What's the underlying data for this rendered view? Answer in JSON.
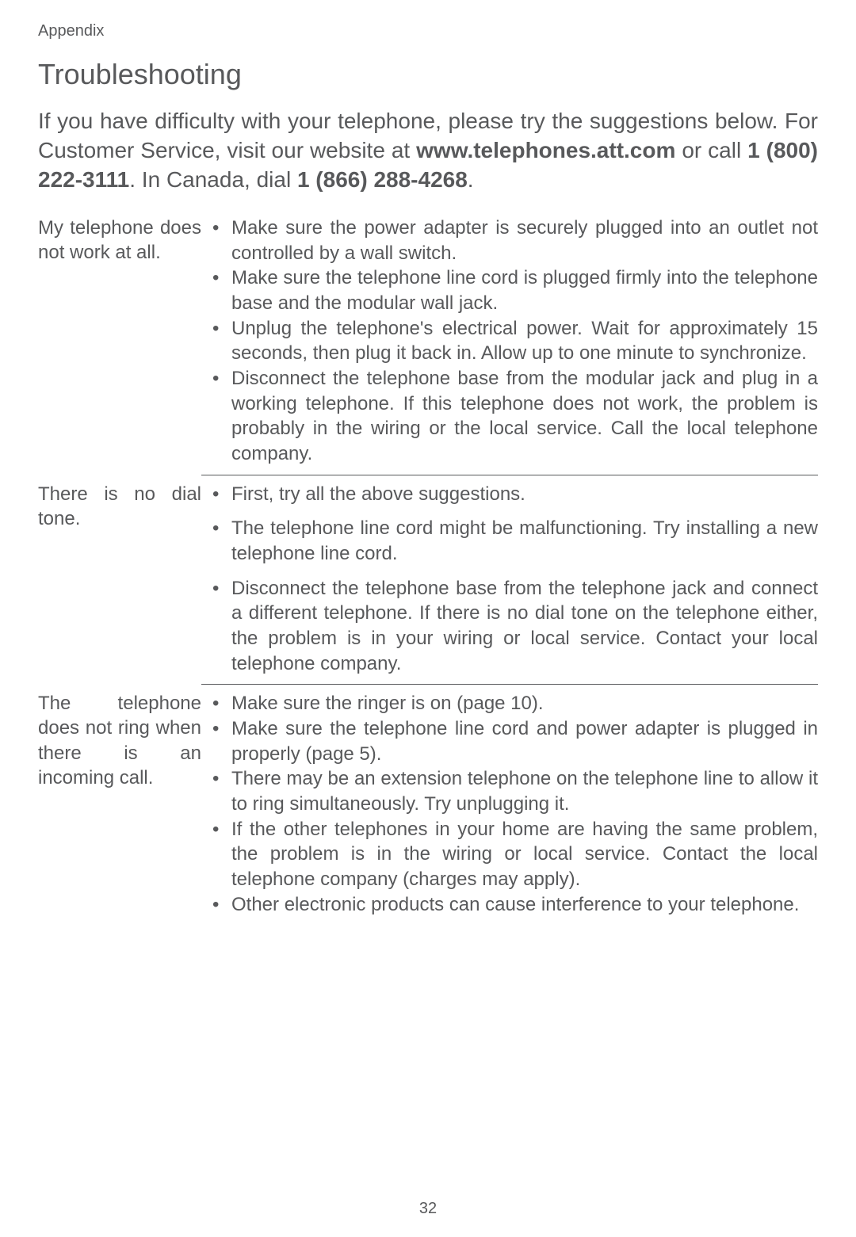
{
  "header": {
    "label": "Appendix"
  },
  "title": "Troubleshooting",
  "intro": {
    "part1": "If you have difficulty with your telephone, please try the sug­gestions below. For Customer Service, visit our website at ",
    "bold1": "www.telephones.att.com",
    "part2": " or call ",
    "bold2": "1 (800) 222-3111",
    "part3": ". In Canada, dial ",
    "bold3": "1 (866) 288-4268",
    "part4": "."
  },
  "sections": [
    {
      "label": "My telephone does not work at all.",
      "bullets": [
        "Make sure the power adapter is securely plugged into an outlet not controlled by a wall switch.",
        "Make sure the telephone line cord is plugged firmly into the telephone base and the modular wall jack.",
        "Unplug the telephone's electrical power. Wait for approximately 15 seconds, then plug it back in. Allow up to one minute to synchronize.",
        "Disconnect the telephone base from the modular jack and plug in a working telephone. If this telephone does not work, the problem is probably in the wiring or the local service. Call the local telephone company."
      ]
    },
    {
      "label": "There is no dial tone.",
      "bullets": [
        "First, try all the above suggestions.",
        "The telephone line cord might be malfunctioning. Try install­ing a new telephone line cord.",
        "Disconnect the telephone base from the telephone jack and connect a different telephone. If there is no dial tone on the telephone either, the problem is in your wiring or local service. Contact your local telephone company."
      ]
    },
    {
      "label": "The telephone does not ring when there is an incoming call.",
      "bullets": [
        "Make sure the ringer is on (page 10).",
        "Make sure the telephone line cord and power adapter is plugged in properly (page 5).",
        "There may be an extension telephone on the telephone line to allow it to ring simultaneously. Try unplugging it.",
        "If the other telephones in your home are having the same problem, the problem is in the wiring or local service. Contact the local telephone company (charges may apply).",
        "Other electronic products can cause interference to your telephone."
      ]
    }
  ],
  "footer": {
    "page": "32"
  }
}
